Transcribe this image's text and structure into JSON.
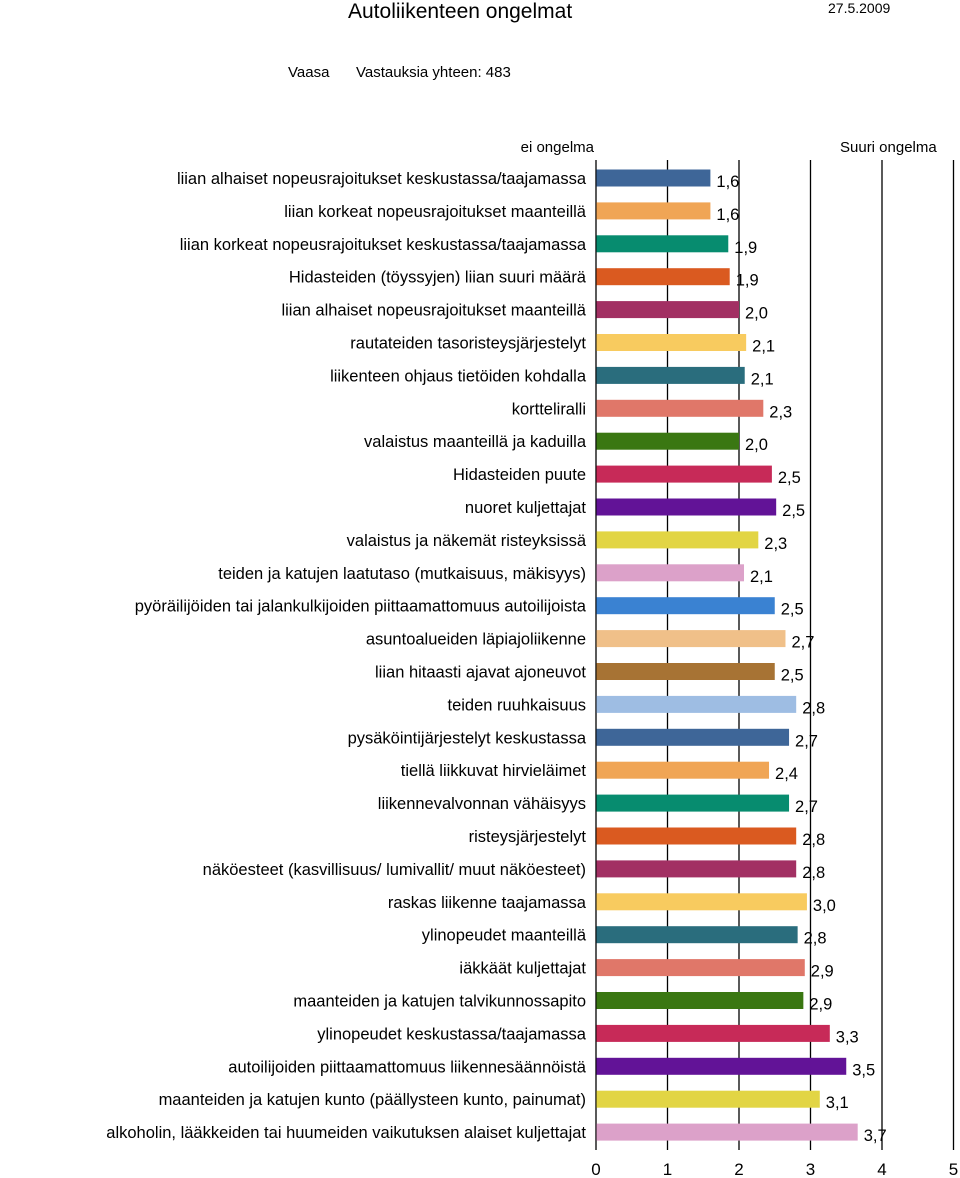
{
  "header": {
    "title": "Autoliikenteen ongelmat",
    "date": "27.5.2009",
    "city": "Vaasa",
    "responses": "Vastauksia yhteen: 483",
    "scale_low_label": "ei ongelma",
    "scale_high_label": "Suuri ongelma"
  },
  "chart_data": {
    "type": "bar",
    "orientation": "horizontal",
    "categories": [
      "liian alhaiset nopeusrajoitukset keskustassa/taajamassa",
      "liian korkeat nopeusrajoitukset maanteillä",
      "liian korkeat nopeusrajoitukset keskustassa/taajamassa",
      "Hidasteiden (töyssyjen) liian suuri määrä",
      "liian alhaiset nopeusrajoitukset maanteillä",
      "rautateiden tasoristeysjärjestelyt",
      "liikenteen ohjaus tietöiden kohdalla",
      "kortteliralli",
      "valaistus maanteillä ja kaduilla",
      "Hidasteiden puute",
      "nuoret kuljettajat",
      "valaistus ja näkemät risteyksissä",
      "teiden ja katujen laatutaso (mutkaisuus, mäkisyys)",
      "pyöräilijöiden tai jalankulkijoiden piittaamattomuus autoilijoista",
      "asuntoalueiden läpiajoliikenne",
      "liian hitaasti ajavat ajoneuvot",
      "teiden ruuhkaisuus",
      "pysäköintijärjestelyt keskustassa",
      "tiellä liikkuvat hirvieläimet",
      "liikennevalvonnan vähäisyys",
      "risteysjärjestelyt",
      "näköesteet (kasvillisuus/ lumivallit/ muut näköesteet)",
      "raskas liikenne taajamassa",
      "ylinopeudet maanteillä",
      "iäkkäät kuljettajat",
      "maanteiden ja katujen talvikunnossapito",
      "ylinopeudet keskustassa/taajamassa",
      "autoilijoiden piittaamattomuus liikennesäännöistä",
      "maanteiden ja katujen kunto (päällysteen kunto, painumat)",
      "alkoholin, lääkkeiden tai huumeiden vaikutuksen alaiset kuljettajat"
    ],
    "values": [
      1.6,
      1.6,
      1.85,
      1.87,
      2.0,
      2.1,
      2.08,
      2.34,
      2.0,
      2.46,
      2.52,
      2.27,
      2.07,
      2.5,
      2.65,
      2.5,
      2.8,
      2.7,
      2.42,
      2.7,
      2.8,
      2.8,
      2.95,
      2.82,
      2.92,
      2.9,
      3.27,
      3.5,
      3.13,
      3.66
    ],
    "value_labels": [
      "1,6",
      "1,6",
      "1,9",
      "1,9",
      "2,0",
      "2,1",
      "2,1",
      "2,3",
      "2,0",
      "2,5",
      "2,5",
      "2,3",
      "2,1",
      "2,5",
      "2,7",
      "2,5",
      "2,8",
      "2,7",
      "2,4",
      "2,7",
      "2,8",
      "2,8",
      "3,0",
      "2,8",
      "2,9",
      "2,9",
      "3,3",
      "3,5",
      "3,1",
      "3,7"
    ],
    "colors": [
      "#3E6698",
      "#F0A555",
      "#078C6F",
      "#DA5A20",
      "#A23063",
      "#F8CB5F",
      "#2A6D7D",
      "#E07769",
      "#3A7712",
      "#C72A58",
      "#621397",
      "#E2D544",
      "#DCA1C9",
      "#3A82D2",
      "#F0C089",
      "#A77334",
      "#9EBDE3"
    ],
    "xlim": [
      0,
      5
    ],
    "x_ticks": [
      "0",
      "1",
      "2",
      "3",
      "4",
      "5"
    ],
    "grid": "vertical lines at 1, 2, 3, 4, 5"
  }
}
